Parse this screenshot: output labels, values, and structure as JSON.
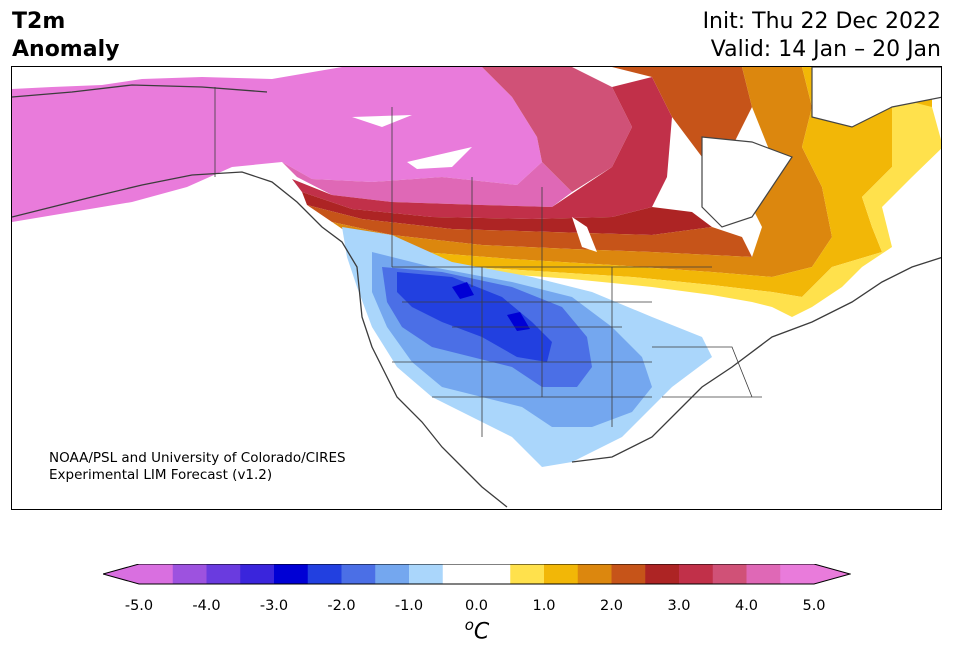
{
  "title": {
    "line1": "T2m",
    "line2": "Anomaly"
  },
  "dates": {
    "init": "Init: Thu 22 Dec 2022",
    "valid": "Valid: 14 Jan – 20 Jan"
  },
  "credit": {
    "line1": "NOAA/PSL and University of Colorado/CIRES",
    "line2": "Experimental LIM Forecast (v1.2)"
  },
  "colorbar": {
    "unit_prefix": "o",
    "unit_main": "C",
    "tick_labels": [
      "-5.0",
      "-4.0",
      "-3.0",
      "-2.0",
      "-1.0",
      "0.0",
      "1.0",
      "2.0",
      "3.0",
      "4.0",
      "5.0"
    ],
    "colors": [
      "#d96fe0",
      "#9d52df",
      "#6a3bdf",
      "#3a25dc",
      "#0000d5",
      "#2240e0",
      "#4b6fe6",
      "#74a7ef",
      "#aad6fb",
      "#ffffff",
      "#ffffff",
      "#ffe14c",
      "#f2b707",
      "#dc870e",
      "#c65419",
      "#ad2424",
      "#c13049",
      "#d05177",
      "#df68b6",
      "#e97bdb"
    ],
    "extend_low": "#d96fe0",
    "extend_high": "#e97bdb",
    "range": [
      -5.0,
      5.0
    ]
  }
}
